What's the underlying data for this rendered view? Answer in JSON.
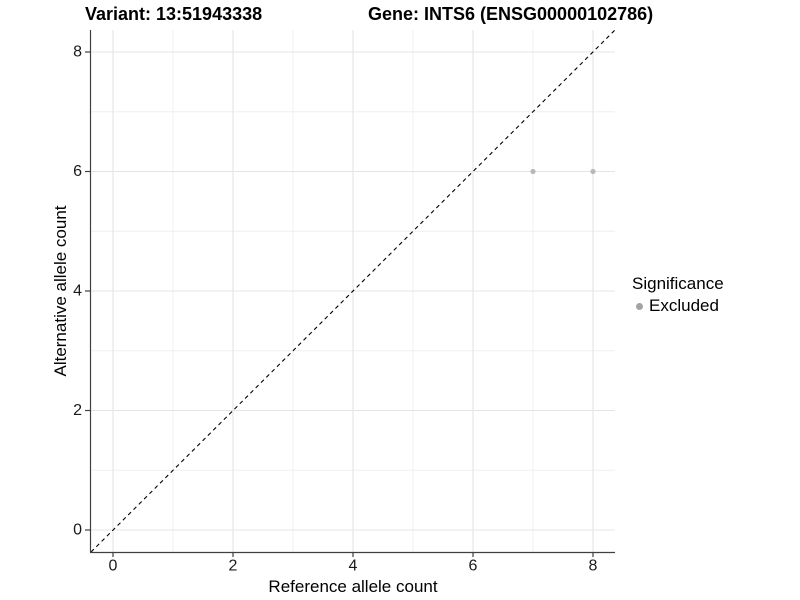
{
  "header": {
    "variant_title": "Variant: 13:51943338",
    "gene_title": "Gene: INTS6 (ENSG00000102786)"
  },
  "chart_data": {
    "type": "scatter",
    "xlabel": "Reference allele count",
    "ylabel": "Alternative allele count",
    "xlim": [
      -0.37,
      8.37
    ],
    "ylim": [
      -0.37,
      8.37
    ],
    "x_ticks": [
      0,
      2,
      4,
      6,
      8
    ],
    "y_ticks": [
      0,
      2,
      4,
      6,
      8
    ],
    "x_minor_gridlines": [
      1,
      3,
      5,
      7
    ],
    "y_minor_gridlines": [
      1,
      3,
      5,
      7
    ],
    "grid": true,
    "legend_position": "right",
    "identity_line": {
      "from": [
        0,
        0
      ],
      "to": [
        8,
        8
      ],
      "style": "dashed",
      "color": "#000000"
    },
    "series": [
      {
        "name": "Excluded",
        "point_color": "#b9b9b9",
        "points": [
          {
            "x": 7,
            "y": 6
          },
          {
            "x": 8,
            "y": 6
          }
        ]
      }
    ]
  },
  "legend": {
    "title": "Significance",
    "items": [
      {
        "label": "Excluded",
        "color": "#a3a3a3"
      }
    ]
  },
  "colors": {
    "grid_major": "#e4e4e4",
    "grid_minor": "#efefef",
    "axis_line": "#404040",
    "tick_label": "#1a1a1a",
    "point": "#b9b9b9"
  }
}
